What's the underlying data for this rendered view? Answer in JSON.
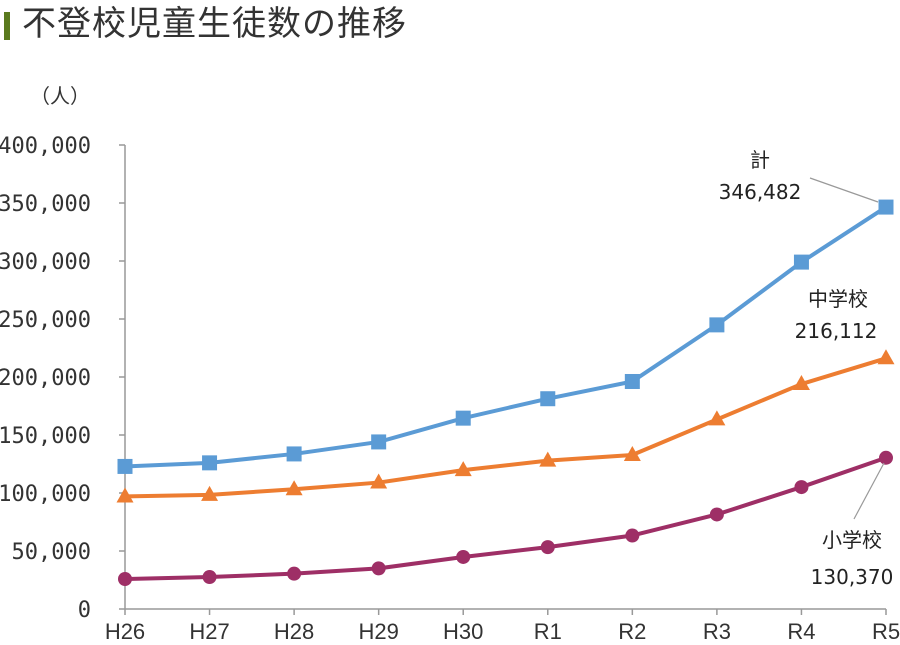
{
  "title": "不登校児童生徒数の推移",
  "unit_label": "（人）",
  "chart_data": {
    "type": "line",
    "title": "不登校児童生徒数の推移",
    "ylabel": "（人）",
    "xlabel": "",
    "categories": [
      "H26",
      "H27",
      "H28",
      "H29",
      "H30",
      "R1",
      "R2",
      "R3",
      "R4",
      "R5"
    ],
    "ylim": [
      0,
      400000
    ],
    "yticks": [
      0,
      50000,
      100000,
      150000,
      200000,
      250000,
      300000,
      350000,
      400000
    ],
    "ytick_labels": [
      "0",
      "50,000",
      "100,000",
      "150,000",
      "200,000",
      "250,000",
      "300,000",
      "350,000",
      "400,000"
    ],
    "grid": false,
    "series": [
      {
        "name": "計",
        "color": "#5b9bd5",
        "marker": "square",
        "values": [
          122902,
          125991,
          133683,
          144031,
          164528,
          181272,
          196127,
          244940,
          299048,
          346482
        ]
      },
      {
        "name": "中学校",
        "color": "#ed7d31",
        "marker": "triangle",
        "values": [
          97033,
          98408,
          103235,
          108999,
          119687,
          127922,
          132777,
          163442,
          193936,
          216112
        ]
      },
      {
        "name": "小学校",
        "color": "#9e2f66",
        "marker": "circle",
        "values": [
          25869,
          27583,
          30448,
          35032,
          44841,
          53350,
          63350,
          81498,
          105112,
          130370
        ]
      }
    ],
    "annotations": [
      {
        "series": "計",
        "name": "計",
        "value_label": "346,482"
      },
      {
        "series": "中学校",
        "name": "中学校",
        "value_label": "216,112"
      },
      {
        "series": "小学校",
        "name": "小学校",
        "value_label": "130,370"
      }
    ]
  }
}
